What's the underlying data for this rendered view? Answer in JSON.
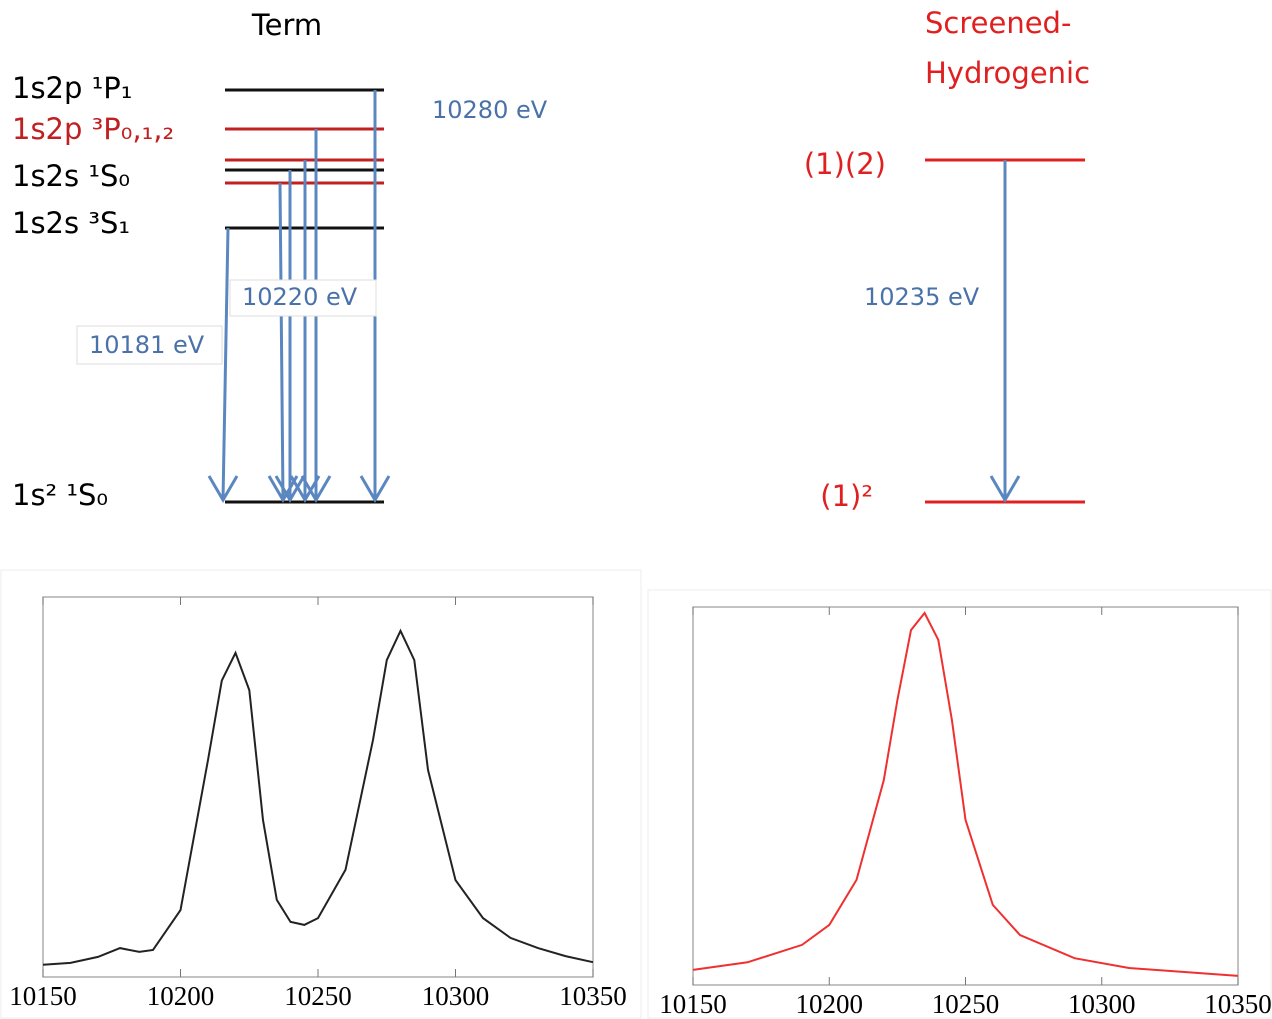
{
  "term_diagram": {
    "title": "Term",
    "levels": [
      "1s2p ¹P₁",
      "1s2p ³P₀,₁,₂",
      "1s2s ¹S₀",
      "1s2s ³S₁",
      "1s² ¹S₀"
    ],
    "transitions": [
      "10280 eV",
      "10220 eV",
      "10181 eV"
    ]
  },
  "screened_diagram": {
    "title": [
      "Screened-",
      "Hydrogenic"
    ],
    "levels": [
      "(1)(2)",
      "(1)²"
    ],
    "transitions": [
      "10235 eV"
    ]
  },
  "chart_data": [
    {
      "type": "line",
      "x": [
        10150,
        10160,
        10170,
        10178,
        10185,
        10190,
        10200,
        10210,
        10215,
        10220,
        10225,
        10230,
        10235,
        10240,
        10245,
        10250,
        10260,
        10270,
        10275,
        10280,
        10285,
        10290,
        10300,
        10310,
        10320,
        10330,
        10340,
        10350
      ],
      "series": [
        {
          "color": "#222222",
          "values": [
            0.032,
            0.037,
            0.053,
            0.076,
            0.066,
            0.071,
            0.176,
            0.571,
            0.78,
            0.853,
            0.755,
            0.413,
            0.203,
            0.145,
            0.137,
            0.155,
            0.282,
            0.624,
            0.834,
            0.911,
            0.834,
            0.545,
            0.255,
            0.155,
            0.103,
            0.076,
            0.055,
            0.039
          ]
        }
      ],
      "xlim": [
        10150,
        10350
      ],
      "xticks": [
        10150,
        10200,
        10250,
        10300,
        10350
      ],
      "ylim": [
        0,
        1
      ]
    },
    {
      "type": "line",
      "x": [
        10150,
        10170,
        10190,
        10200,
        10210,
        10220,
        10225,
        10230,
        10235,
        10240,
        10245,
        10250,
        10260,
        10270,
        10290,
        10310,
        10350
      ],
      "series": [
        {
          "color": "#f03030",
          "values": [
            0.04,
            0.06,
            0.106,
            0.159,
            0.278,
            0.542,
            0.754,
            0.939,
            0.984,
            0.913,
            0.701,
            0.437,
            0.212,
            0.132,
            0.071,
            0.045,
            0.024
          ]
        }
      ],
      "xlim": [
        10150,
        10350
      ],
      "xticks": [
        10150,
        10200,
        10250,
        10300,
        10350
      ],
      "ylim": [
        0,
        1
      ]
    }
  ]
}
